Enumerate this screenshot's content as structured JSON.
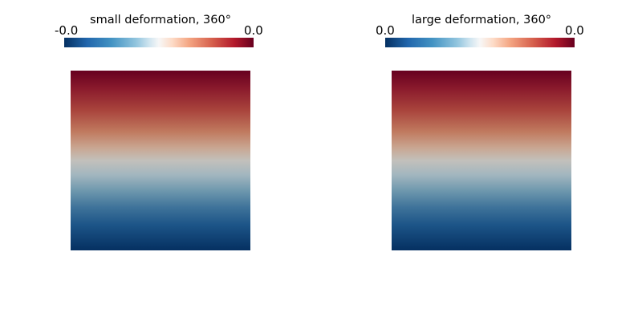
{
  "views": [
    {
      "title": "small deformation, 360°",
      "colorbar_min_label": "-0.0",
      "colorbar_max_label": "0.0",
      "colormap": "diverging-red-blue"
    },
    {
      "title": "large deformation, 360°",
      "colorbar_min_label": "0.0",
      "colorbar_max_label": "0.0",
      "colormap": "diverging-red-blue"
    }
  ],
  "colors": {
    "background": "#ffffff",
    "colormap_low": "#053061",
    "colormap_mid": "#f7f7f7",
    "colormap_high": "#67001f"
  }
}
